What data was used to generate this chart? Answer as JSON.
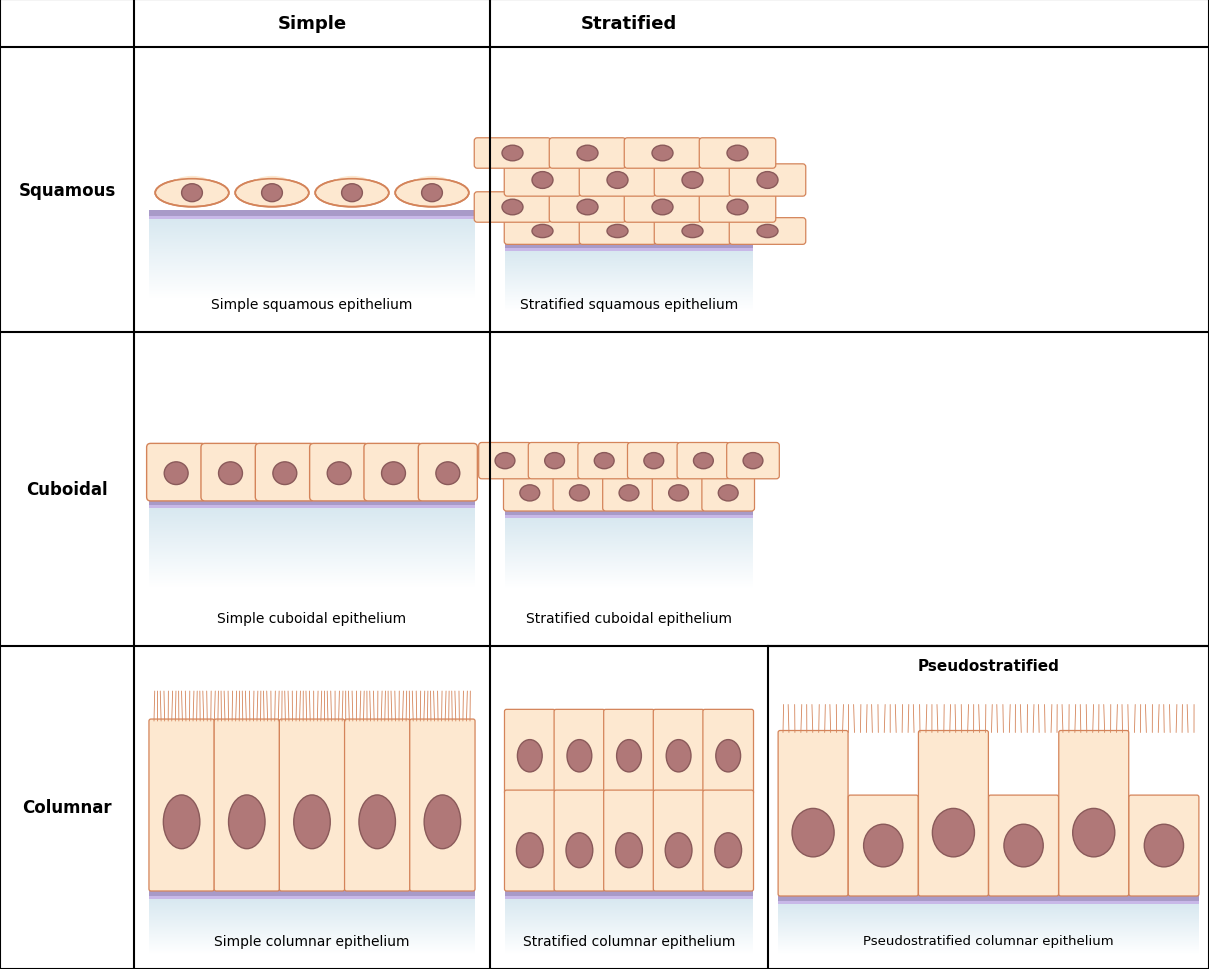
{
  "cell_fill": "#fde8d0",
  "cell_fill_dark": "#f5c9a0",
  "cell_edge": "#d4845a",
  "nucleus_fill": "#b07878",
  "nucleus_edge": "#8a5a5a",
  "basement_fill": "#a89ac8",
  "basement_fill2": "#c8b8e8",
  "tissue_bg_top": "#d8e8f0",
  "tissue_bg_bot": "#eef4f8",
  "header_fontsize": 13,
  "caption_fontsize": 10,
  "row_label_fontsize": 12,
  "row_labels": [
    "Squamous",
    "Cuboidal",
    "Columnar"
  ],
  "captions": [
    [
      "Simple squamous epithelium",
      "Stratified squamous epithelium"
    ],
    [
      "Simple cuboidal epithelium",
      "Stratified cuboidal epithelium"
    ],
    [
      "Simple columnar epithelium",
      "Stratified columnar epithelium",
      "Pseudostratified columnar epithelium"
    ]
  ]
}
